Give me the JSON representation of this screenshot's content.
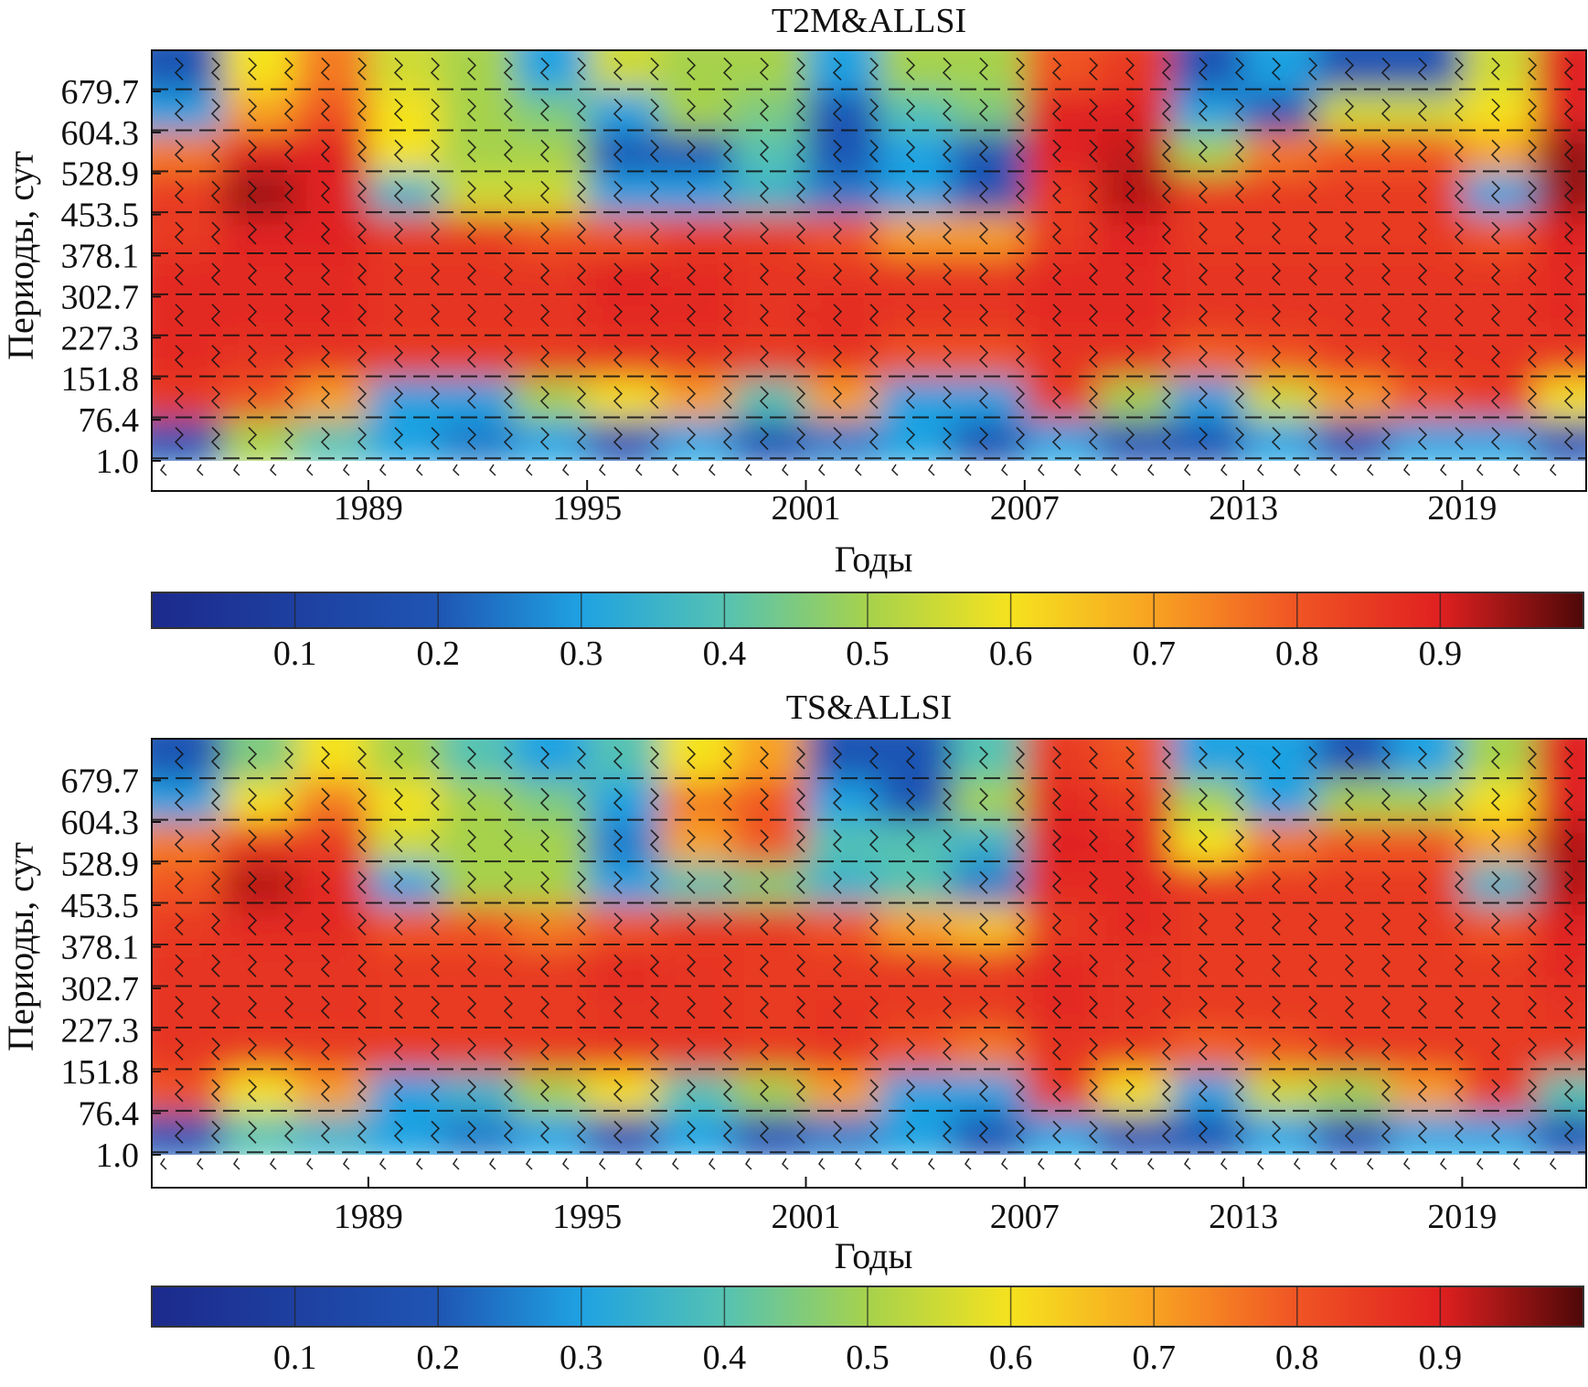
{
  "chart_data": [
    {
      "type": "heatmap",
      "title": "T2M&ALLSI",
      "xlabel": "Годы",
      "ylabel": "Периоды, сут",
      "xlim": [
        1983.06,
        2022.4
      ],
      "xticks": [
        "1989",
        "1995",
        "2001",
        "2007",
        "2013",
        "2019"
      ],
      "yticks": [
        "679.7",
        "604.3",
        "528.9",
        "453.5",
        "378.1",
        "302.7",
        "227.3",
        "151.8",
        "76.4",
        "1.0"
      ],
      "colorbar": {
        "range": [
          0,
          1
        ],
        "ticks": [
          "0.1",
          "0.2",
          "0.3",
          "0.4",
          "0.5",
          "0.6",
          "0.7",
          "0.8",
          "0.9"
        ]
      },
      "x_bins": [
        1983,
        1985,
        1987,
        1989,
        1991,
        1993,
        1995,
        1997,
        1999,
        2001,
        2003,
        2005,
        2007,
        2009,
        2011,
        2013,
        2015,
        2017,
        2019,
        2021
      ],
      "period_bins": [
        ">679.7",
        "679.7-604.3",
        "604.3-528.9",
        "528.9-453.5",
        "453.5-378.1",
        "378.1-302.7",
        "302.7-227.3",
        "227.3-151.8",
        "151.8-76.4",
        "76.4-1.0"
      ],
      "coherence": [
        [
          0.2,
          0.6,
          0.75,
          0.55,
          0.5,
          0.3,
          0.55,
          0.5,
          0.5,
          0.3,
          0.5,
          0.5,
          0.8,
          0.85,
          0.2,
          0.3,
          0.2,
          0.2,
          0.55,
          0.9
        ],
        [
          0.3,
          0.7,
          0.8,
          0.6,
          0.5,
          0.45,
          0.3,
          0.5,
          0.45,
          0.2,
          0.4,
          0.45,
          0.9,
          0.9,
          0.3,
          0.2,
          0.55,
          0.55,
          0.6,
          0.9
        ],
        [
          0.75,
          0.9,
          0.9,
          0.6,
          0.5,
          0.5,
          0.2,
          0.2,
          0.4,
          0.2,
          0.3,
          0.2,
          0.9,
          0.92,
          0.5,
          0.75,
          0.8,
          0.8,
          0.7,
          0.95
        ],
        [
          0.85,
          0.95,
          0.9,
          0.35,
          0.55,
          0.55,
          0.3,
          0.3,
          0.35,
          0.25,
          0.3,
          0.2,
          0.85,
          0.93,
          0.85,
          0.85,
          0.85,
          0.85,
          0.3,
          0.95
        ],
        [
          0.85,
          0.9,
          0.9,
          0.85,
          0.85,
          0.8,
          0.8,
          0.85,
          0.85,
          0.8,
          0.7,
          0.7,
          0.85,
          0.9,
          0.85,
          0.85,
          0.85,
          0.85,
          0.8,
          0.9
        ],
        [
          0.88,
          0.88,
          0.88,
          0.86,
          0.86,
          0.86,
          0.9,
          0.88,
          0.86,
          0.86,
          0.86,
          0.86,
          0.88,
          0.88,
          0.86,
          0.86,
          0.86,
          0.86,
          0.86,
          0.88
        ],
        [
          0.88,
          0.88,
          0.88,
          0.86,
          0.86,
          0.86,
          0.88,
          0.88,
          0.86,
          0.88,
          0.86,
          0.86,
          0.88,
          0.88,
          0.86,
          0.86,
          0.86,
          0.86,
          0.86,
          0.88
        ],
        [
          0.88,
          0.86,
          0.86,
          0.85,
          0.85,
          0.85,
          0.86,
          0.86,
          0.85,
          0.86,
          0.8,
          0.8,
          0.86,
          0.86,
          0.78,
          0.8,
          0.85,
          0.86,
          0.86,
          0.85
        ],
        [
          0.85,
          0.8,
          0.7,
          0.3,
          0.3,
          0.5,
          0.6,
          0.7,
          0.4,
          0.7,
          0.3,
          0.3,
          0.85,
          0.5,
          0.3,
          0.55,
          0.7,
          0.8,
          0.85,
          0.6
        ],
        [
          0.2,
          0.5,
          0.4,
          0.3,
          0.25,
          0.3,
          0.2,
          0.3,
          0.2,
          0.25,
          0.3,
          0.2,
          0.3,
          0.2,
          0.2,
          0.3,
          0.2,
          0.3,
          0.3,
          0.2
        ]
      ]
    },
    {
      "type": "heatmap",
      "title": "TS&ALLSI",
      "xlabel": "Годы",
      "ylabel": "Периоды, сут",
      "xlim": [
        1983.06,
        2022.4
      ],
      "xticks": [
        "1989",
        "1995",
        "2001",
        "2007",
        "2013",
        "2019"
      ],
      "yticks": [
        "679.7",
        "604.3",
        "528.9",
        "453.5",
        "378.1",
        "302.7",
        "227.3",
        "151.8",
        "76.4",
        "1.0"
      ],
      "colorbar": {
        "range": [
          0,
          1
        ],
        "ticks": [
          "0.1",
          "0.2",
          "0.3",
          "0.4",
          "0.5",
          "0.6",
          "0.7",
          "0.8",
          "0.9"
        ]
      },
      "x_bins": [
        1983,
        1985,
        1987,
        1989,
        1991,
        1993,
        1995,
        1997,
        1999,
        2001,
        2003,
        2005,
        2007,
        2009,
        2011,
        2013,
        2015,
        2017,
        2019,
        2021
      ],
      "period_bins": [
        ">679.7",
        "679.7-604.3",
        "604.3-528.9",
        "528.9-453.5",
        "453.5-378.1",
        "378.1-302.7",
        "302.7-227.3",
        "227.3-151.8",
        "151.8-76.4",
        "76.4-1.0"
      ],
      "coherence": [
        [
          0.2,
          0.45,
          0.6,
          0.5,
          0.4,
          0.3,
          0.4,
          0.6,
          0.7,
          0.2,
          0.2,
          0.4,
          0.85,
          0.8,
          0.3,
          0.3,
          0.2,
          0.3,
          0.5,
          0.9
        ],
        [
          0.3,
          0.6,
          0.75,
          0.6,
          0.5,
          0.45,
          0.3,
          0.75,
          0.8,
          0.3,
          0.2,
          0.5,
          0.88,
          0.85,
          0.5,
          0.3,
          0.5,
          0.5,
          0.6,
          0.9
        ],
        [
          0.75,
          0.85,
          0.85,
          0.55,
          0.5,
          0.5,
          0.25,
          0.7,
          0.8,
          0.4,
          0.4,
          0.35,
          0.9,
          0.88,
          0.6,
          0.75,
          0.8,
          0.8,
          0.7,
          0.93
        ],
        [
          0.8,
          0.93,
          0.88,
          0.3,
          0.5,
          0.5,
          0.3,
          0.4,
          0.45,
          0.35,
          0.4,
          0.25,
          0.88,
          0.88,
          0.85,
          0.85,
          0.85,
          0.85,
          0.35,
          0.93
        ],
        [
          0.85,
          0.88,
          0.88,
          0.8,
          0.8,
          0.75,
          0.8,
          0.85,
          0.85,
          0.8,
          0.7,
          0.65,
          0.85,
          0.88,
          0.85,
          0.85,
          0.85,
          0.85,
          0.8,
          0.9
        ],
        [
          0.86,
          0.86,
          0.86,
          0.85,
          0.85,
          0.85,
          0.88,
          0.86,
          0.85,
          0.85,
          0.85,
          0.85,
          0.88,
          0.86,
          0.85,
          0.85,
          0.85,
          0.85,
          0.85,
          0.88
        ],
        [
          0.86,
          0.86,
          0.86,
          0.85,
          0.85,
          0.85,
          0.86,
          0.86,
          0.85,
          0.86,
          0.85,
          0.85,
          0.88,
          0.86,
          0.85,
          0.85,
          0.85,
          0.85,
          0.85,
          0.86
        ],
        [
          0.86,
          0.85,
          0.85,
          0.85,
          0.85,
          0.85,
          0.86,
          0.86,
          0.85,
          0.86,
          0.8,
          0.75,
          0.86,
          0.85,
          0.78,
          0.8,
          0.85,
          0.85,
          0.85,
          0.85
        ],
        [
          0.8,
          0.6,
          0.7,
          0.3,
          0.35,
          0.5,
          0.6,
          0.4,
          0.5,
          0.7,
          0.3,
          0.3,
          0.85,
          0.6,
          0.3,
          0.55,
          0.5,
          0.7,
          0.85,
          0.4
        ],
        [
          0.2,
          0.4,
          0.35,
          0.3,
          0.25,
          0.3,
          0.2,
          0.3,
          0.2,
          0.25,
          0.3,
          0.2,
          0.3,
          0.2,
          0.2,
          0.3,
          0.2,
          0.3,
          0.3,
          0.2
        ]
      ]
    }
  ]
}
